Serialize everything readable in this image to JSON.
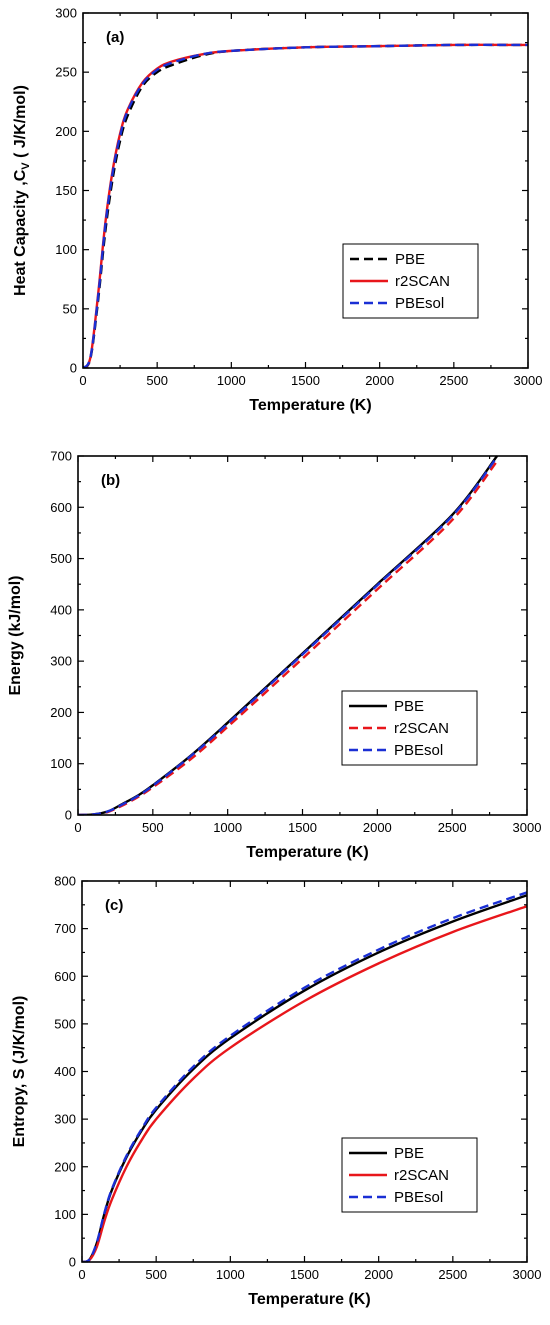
{
  "chart_data": [
    {
      "type": "line",
      "panel_label": "(a)",
      "xlabel": "Temperature (K)",
      "ylabel": "Heat Capacity ,C",
      "ylabel_sub": "V",
      "ylabel_tail": " ( J/K/mol)",
      "xlim": [
        0,
        3000
      ],
      "ylim": [
        0,
        300
      ],
      "xticks": [
        0,
        500,
        1000,
        1500,
        2000,
        2500,
        3000
      ],
      "yticks": [
        0,
        50,
        100,
        150,
        200,
        250,
        300
      ],
      "legend_position": "lower-right",
      "x": [
        0,
        50,
        100,
        150,
        200,
        250,
        300,
        400,
        500,
        600,
        800,
        1000,
        1500,
        2000,
        2500,
        3000
      ],
      "series": [
        {
          "name": "PBE",
          "color": "#000000",
          "dash": "dashed",
          "values": [
            0,
            8,
            55,
            115,
            160,
            192,
            213,
            238,
            250,
            256,
            264,
            268,
            271,
            272,
            273,
            273
          ]
        },
        {
          "name": "r2SCAN",
          "color": "#e8161b",
          "dash": "solid",
          "values": [
            0,
            9,
            60,
            122,
            167,
            198,
            218,
            241,
            253,
            259,
            265,
            268,
            271,
            272,
            273,
            273
          ]
        },
        {
          "name": "PBEsol",
          "color": "#1a2fd4",
          "dash": "dashed",
          "values": [
            0,
            9,
            58,
            120,
            165,
            196,
            217,
            240,
            252,
            258,
            265,
            268,
            271,
            272,
            273,
            273
          ]
        }
      ]
    },
    {
      "type": "line",
      "panel_label": "(b)",
      "xlabel": "Temperature (K)",
      "ylabel": "Energy (kJ/mol)",
      "xlim": [
        0,
        3000
      ],
      "ylim": [
        0,
        700
      ],
      "xticks": [
        0,
        500,
        1000,
        1500,
        2000,
        2500,
        3000
      ],
      "yticks": [
        0,
        100,
        200,
        300,
        400,
        500,
        600,
        700
      ],
      "legend_position": "lower-right",
      "x": [
        0,
        100,
        200,
        300,
        400,
        500,
        750,
        1000,
        1500,
        2000,
        2500,
        2800
      ],
      "series": [
        {
          "name": "PBE",
          "color": "#000000",
          "dash": "solid",
          "values": [
            0,
            1,
            7,
            22,
            38,
            58,
            115,
            180,
            315,
            450,
            585,
            700
          ]
        },
        {
          "name": "r2SCAN",
          "color": "#e8161b",
          "dash": "dashed",
          "values": [
            0,
            1,
            6,
            19,
            35,
            54,
            108,
            172,
            305,
            440,
            575,
            690
          ]
        },
        {
          "name": "PBEsol",
          "color": "#1a2fd4",
          "dash": "dashed",
          "values": [
            0,
            1,
            7,
            21,
            37,
            57,
            114,
            178,
            313,
            448,
            583,
            698
          ]
        }
      ]
    },
    {
      "type": "line",
      "panel_label": "(c)",
      "xlabel": "Temperature (K)",
      "ylabel": "Entropy, S (J/K/mol)",
      "xlim": [
        0,
        3000
      ],
      "ylim": [
        0,
        800
      ],
      "xticks": [
        0,
        500,
        1000,
        1500,
        2000,
        2500,
        3000
      ],
      "yticks": [
        0,
        100,
        200,
        300,
        400,
        500,
        600,
        700,
        800
      ],
      "legend_position": "lower-right",
      "x": [
        0,
        50,
        100,
        150,
        200,
        300,
        400,
        500,
        750,
        1000,
        1500,
        2000,
        2500,
        3000
      ],
      "series": [
        {
          "name": "PBE",
          "color": "#000000",
          "dash": "solid",
          "values": [
            0,
            5,
            40,
            100,
            150,
            220,
            275,
            320,
            405,
            470,
            570,
            650,
            715,
            770
          ]
        },
        {
          "name": "r2SCAN",
          "color": "#e8161b",
          "dash": "solid",
          "values": [
            0,
            4,
            32,
            85,
            130,
            200,
            255,
            300,
            385,
            450,
            548,
            627,
            693,
            747
          ]
        },
        {
          "name": "PBEsol",
          "color": "#1a2fd4",
          "dash": "dashed",
          "values": [
            0,
            5,
            41,
            102,
            152,
            223,
            278,
            324,
            410,
            475,
            576,
            656,
            722,
            776
          ]
        }
      ]
    }
  ]
}
